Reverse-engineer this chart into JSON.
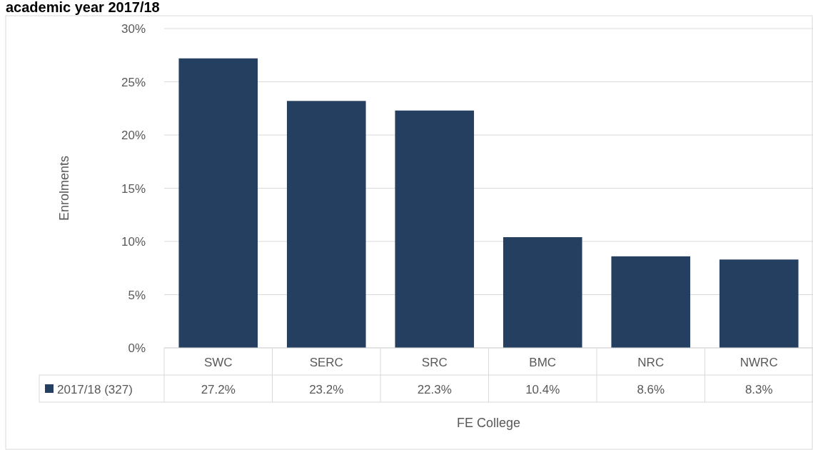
{
  "chart_data": {
    "type": "bar",
    "title": "academic year 2017/18",
    "xlabel": "FE College",
    "ylabel": "Enrolments",
    "categories": [
      "SWC",
      "SERC",
      "SRC",
      "BMC",
      "NRC",
      "NWRC"
    ],
    "series": [
      {
        "name": "2017/18 (327)",
        "color": "#243f60",
        "values": [
          27.2,
          23.2,
          22.3,
          10.4,
          8.6,
          8.3
        ],
        "value_labels": [
          "27.2%",
          "23.2%",
          "22.3%",
          "10.4%",
          "8.6%",
          "8.3%"
        ]
      }
    ],
    "ylim": [
      0,
      30
    ],
    "yticks": [
      {
        "value": 0,
        "label": "0%"
      },
      {
        "value": 5,
        "label": "5%"
      },
      {
        "value": 10,
        "label": "10%"
      },
      {
        "value": 15,
        "label": "15%"
      },
      {
        "value": 20,
        "label": "20%"
      },
      {
        "value": 25,
        "label": "25%"
      },
      {
        "value": 30,
        "label": "30%"
      }
    ],
    "grid": "y",
    "legend": "bottom"
  }
}
